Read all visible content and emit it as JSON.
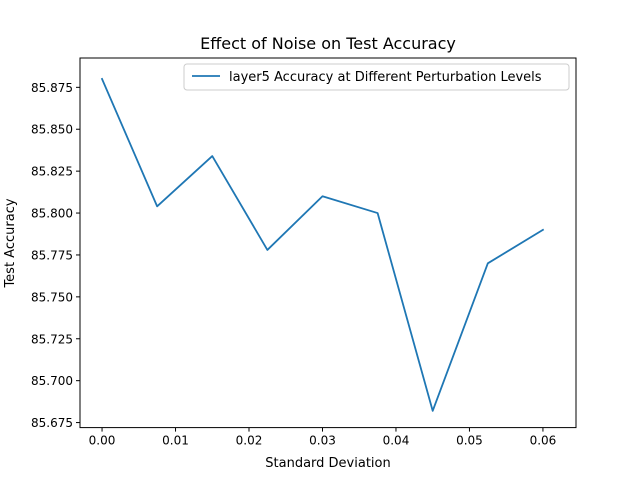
{
  "chart_data": {
    "type": "line",
    "title": "Effect of Noise on Test Accuracy",
    "xlabel": "Standard Deviation",
    "ylabel": "Test Accuracy",
    "xlim": [
      -0.003,
      0.0645
    ],
    "ylim": [
      85.672,
      85.8925
    ],
    "xticks": [
      0.0,
      0.01,
      0.02,
      0.03,
      0.04,
      0.05,
      0.06
    ],
    "xtick_labels": [
      "0.00",
      "0.01",
      "0.02",
      "0.03",
      "0.04",
      "0.05",
      "0.06"
    ],
    "yticks": [
      85.675,
      85.7,
      85.725,
      85.75,
      85.775,
      85.8,
      85.825,
      85.85,
      85.875
    ],
    "ytick_labels": [
      "85.675",
      "85.700",
      "85.725",
      "85.750",
      "85.775",
      "85.800",
      "85.825",
      "85.850",
      "85.875"
    ],
    "grid": false,
    "legend_position": "top-right",
    "series": [
      {
        "name": "layer5 Accuracy at Different Perturbation Levels",
        "color": "#1f77b4",
        "x": [
          0.0,
          0.0075,
          0.015,
          0.0225,
          0.03,
          0.0375,
          0.045,
          0.0525,
          0.06
        ],
        "y": [
          85.88,
          85.804,
          85.834,
          85.778,
          85.81,
          85.8,
          85.682,
          85.77,
          85.79
        ]
      }
    ]
  }
}
